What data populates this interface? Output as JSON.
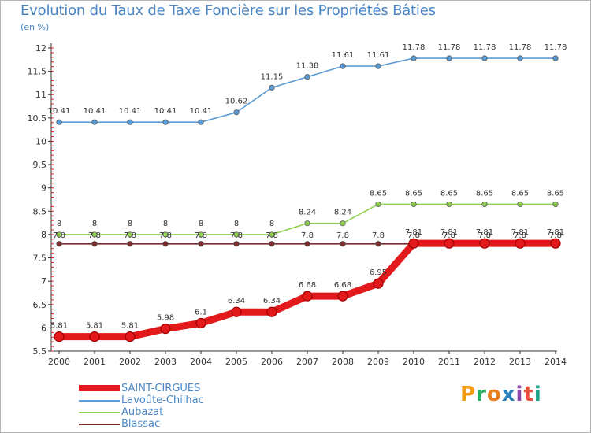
{
  "header": {
    "title": "Evolution du Taux de Taxe Foncière sur les Propriétés Bâties",
    "unit": "(en %)"
  },
  "logo": {
    "text": "Proxiti",
    "colors": [
      "#f39c12",
      "#27ae60",
      "#e67e22",
      "#2980b9",
      "#8e44ad",
      "#e74c3c",
      "#16a085"
    ]
  },
  "chart_data": {
    "type": "line",
    "x": [
      "2000",
      "2001",
      "2002",
      "2003",
      "2004",
      "2005",
      "2006",
      "2007",
      "2008",
      "2009",
      "2010",
      "2011",
      "2012",
      "2013",
      "2014"
    ],
    "ylim": [
      5.5,
      12
    ],
    "yticks": [
      "5.5",
      "6",
      "6.5",
      "7",
      "7.5",
      "8",
      "8.5",
      "9",
      "9.5",
      "10",
      "10.5",
      "11",
      "11.5",
      "12"
    ],
    "grid": false,
    "legend_position": "bottom-left",
    "series": [
      {
        "name": "SAINT-CIRGUES",
        "color": "#e31a1c",
        "values": [
          5.81,
          5.81,
          5.81,
          5.98,
          6.1,
          6.34,
          6.34,
          6.68,
          6.68,
          6.95,
          7.81,
          7.81,
          7.81,
          7.81,
          7.81
        ],
        "labels": [
          "5.81",
          "5.81",
          "5.81",
          "5.98",
          "6.1",
          "6.34",
          "6.34",
          "6.68",
          "6.68",
          "6.95",
          "7.81",
          "7.81",
          "7.81",
          "7.81",
          "7.81"
        ]
      },
      {
        "name": "Lavoûte-Chilhac",
        "color": "#5b9bd5",
        "values": [
          10.41,
          10.41,
          10.41,
          10.41,
          10.41,
          10.62,
          11.15,
          11.38,
          11.61,
          11.61,
          11.78,
          11.78,
          11.78,
          11.78,
          11.78
        ],
        "labels": [
          "10.41",
          "10.41",
          "10.41",
          "10.41",
          "10.41",
          "10.62",
          "11.15",
          "11.38",
          "11.61",
          "11.61",
          "11.78",
          "11.78",
          "11.78",
          "11.78",
          "11.78"
        ]
      },
      {
        "name": "Aubazat",
        "color": "#8fd14f",
        "values": [
          8,
          8,
          8,
          8,
          8,
          8,
          8,
          8.24,
          8.24,
          8.65,
          8.65,
          8.65,
          8.65,
          8.65,
          8.65
        ],
        "labels": [
          "8",
          "8",
          "8",
          "8",
          "8",
          "8",
          "8",
          "8.24",
          "8.24",
          "8.65",
          "8.65",
          "8.65",
          "8.65",
          "8.65",
          "8.65"
        ]
      },
      {
        "name": "Blassac",
        "color": "#7b2c2c",
        "values": [
          7.8,
          7.8,
          7.8,
          7.8,
          7.8,
          7.8,
          7.8,
          7.8,
          7.8,
          7.8,
          7.8,
          7.8,
          7.8,
          7.8,
          7.8
        ],
        "labels": [
          "7.8",
          "7.8",
          "7.8",
          "7.8",
          "7.8",
          "7.8",
          "7.8",
          "7.8",
          "7.8",
          "7.8",
          "7.8",
          "7.8",
          "7.8",
          "7.8",
          "7.8"
        ]
      }
    ]
  }
}
